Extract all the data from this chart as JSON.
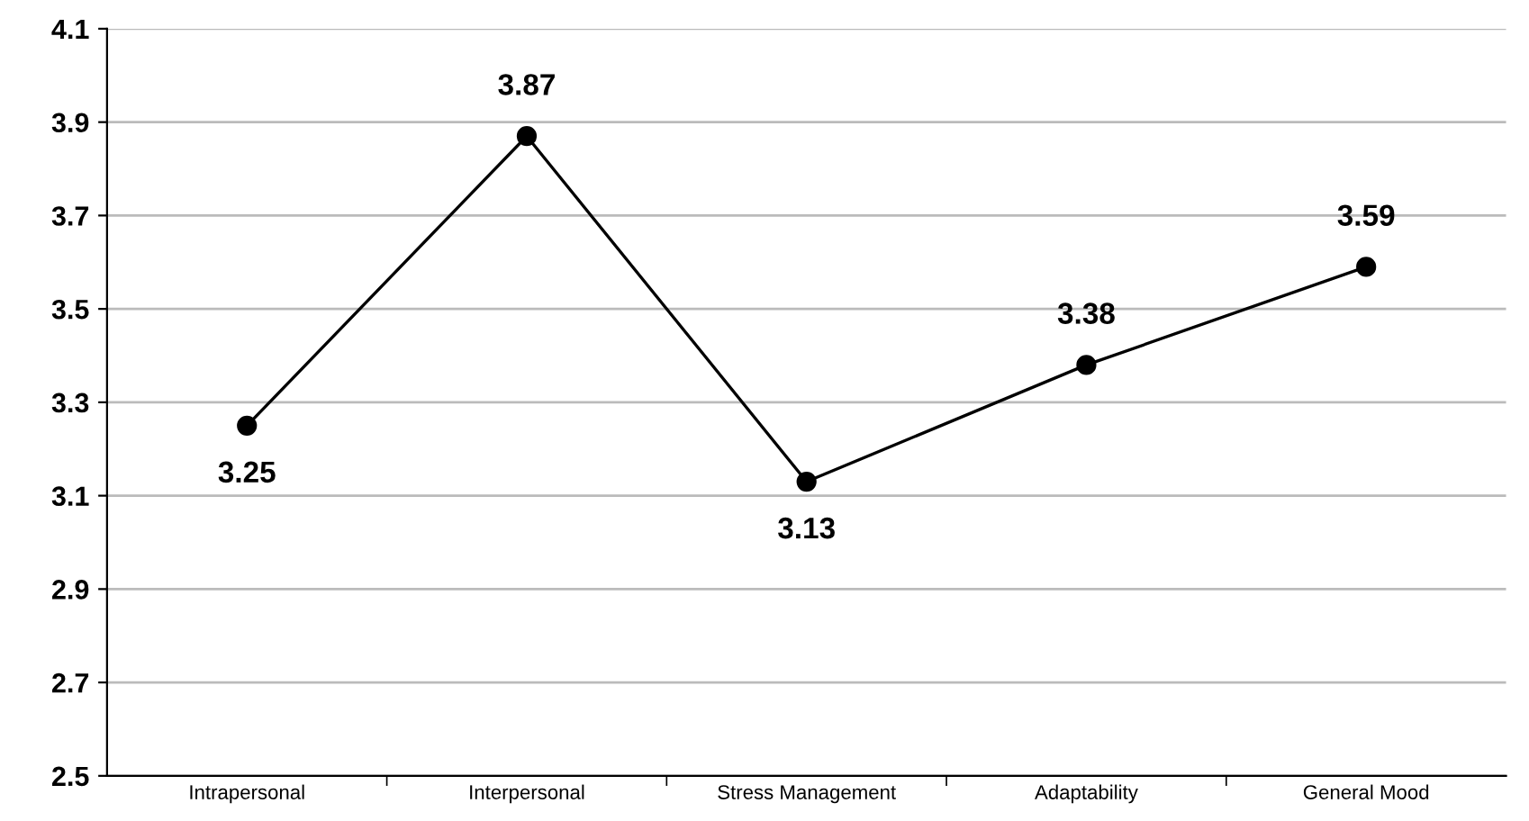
{
  "chart_data": {
    "type": "line",
    "categories": [
      "Intrapersonal",
      "Interpersonal",
      "Stress Management",
      "Adaptability",
      "General Mood"
    ],
    "series": [
      {
        "color": "#000000",
        "values": [
          3.25,
          3.87,
          3.13,
          3.38,
          3.59
        ]
      }
    ],
    "ylim": [
      2.5,
      4.1
    ],
    "yticks": [
      2.5,
      2.7,
      2.9,
      3.1,
      3.3,
      3.5,
      3.7,
      3.9,
      4.1
    ],
    "grid": "y",
    "marker": "circle",
    "line_style": "solid",
    "data_labels": true
  }
}
